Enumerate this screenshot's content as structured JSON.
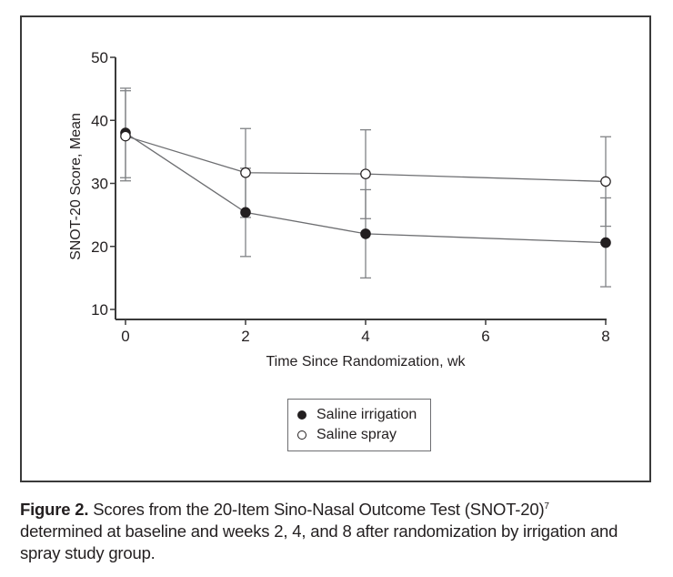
{
  "chart_data": {
    "type": "line",
    "title": "",
    "xlabel": "Time Since Randomization, wk",
    "ylabel": "SNOT-20 Score, Mean",
    "xlim": [
      0,
      8
    ],
    "ylim": [
      10,
      50
    ],
    "x_ticks": [
      0,
      2,
      4,
      6,
      8
    ],
    "y_ticks": [
      10,
      20,
      30,
      40,
      50
    ],
    "grid": false,
    "legend_position": "bottom-center",
    "x": [
      0,
      2,
      4,
      8
    ],
    "series": [
      {
        "name": "Saline irrigation",
        "marker": "filled-circle",
        "values": [
          38.0,
          25.4,
          22.0,
          20.6
        ],
        "error_upper": [
          45.1,
          32.4,
          29.0,
          27.7
        ],
        "error_lower": [
          30.9,
          18.4,
          15.0,
          13.6
        ]
      },
      {
        "name": "Saline spray",
        "marker": "open-circle",
        "values": [
          37.5,
          31.7,
          31.5,
          30.3
        ],
        "error_upper": [
          44.7,
          38.7,
          38.5,
          37.4
        ],
        "error_lower": [
          30.4,
          24.6,
          24.4,
          23.2
        ]
      }
    ]
  },
  "legend": {
    "items": [
      {
        "label": "Saline irrigation",
        "marker": "filled-circle"
      },
      {
        "label": "Saline spray",
        "marker": "open-circle"
      }
    ]
  },
  "caption": {
    "label": "Figure 2.",
    "text_line1": " Scores from the 20-Item Sino-Nasal Outcome Test (SNOT-20)",
    "superscript": "7",
    "text_rest": "determined at baseline and weeks 2, 4, and 8 after randomization by irrigation and spray study group."
  }
}
